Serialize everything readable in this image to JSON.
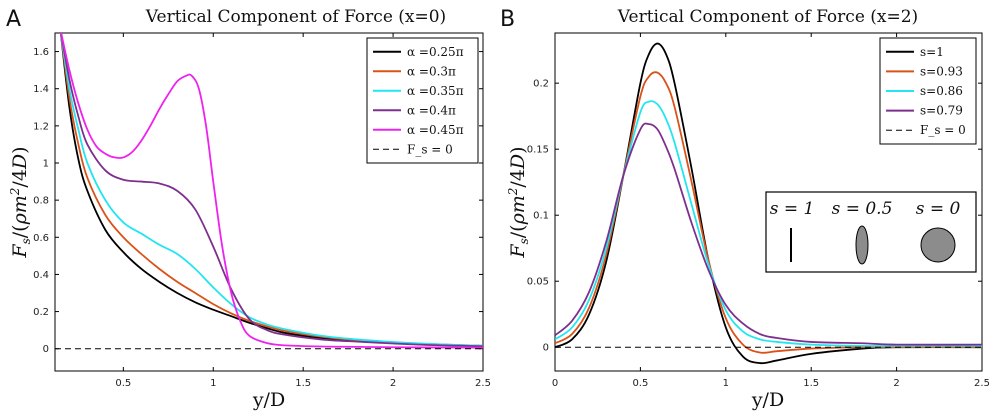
{
  "chart_data": [
    {
      "panel": "A",
      "type": "line",
      "title": "Vertical Component of Force (x=0)",
      "xlabel": "y/D",
      "ylabel": "F_s/(ρm²/4D)",
      "xlim": [
        0.12,
        2.5
      ],
      "ylim": [
        -0.12,
        1.7
      ],
      "xticks": [
        0.5,
        1,
        1.5,
        2,
        2.5
      ],
      "xtick_labels": [
        "0.5",
        "1",
        "1.5",
        "2",
        "2.5"
      ],
      "yticks": [
        0,
        0.2,
        0.4,
        0.6,
        0.8,
        1,
        1.2,
        1.4,
        1.6
      ],
      "ytick_labels": [
        "0",
        "0.2",
        "0.4",
        "0.6",
        "0.8",
        "1",
        "1.2",
        "1.4",
        "1.6"
      ],
      "legend_position": "top-right",
      "series": [
        {
          "name": "α =0.25π",
          "color": "#000000",
          "x": [
            0.15,
            0.2,
            0.25,
            0.3,
            0.4,
            0.5,
            0.6,
            0.7,
            0.8,
            0.9,
            1.0,
            1.1,
            1.2,
            1.3,
            1.4,
            1.6,
            1.8,
            2.0,
            2.2,
            2.5
          ],
          "y": [
            1.72,
            1.3,
            1.02,
            0.85,
            0.64,
            0.52,
            0.43,
            0.36,
            0.3,
            0.25,
            0.21,
            0.175,
            0.14,
            0.11,
            0.085,
            0.058,
            0.042,
            0.032,
            0.024,
            0.015
          ]
        },
        {
          "name": "α =0.3π",
          "color": "#d95319",
          "x": [
            0.15,
            0.2,
            0.25,
            0.3,
            0.4,
            0.5,
            0.6,
            0.7,
            0.8,
            0.9,
            1.0,
            1.1,
            1.2,
            1.3,
            1.4,
            1.6,
            1.8,
            2.0,
            2.2,
            2.5
          ],
          "y": [
            1.72,
            1.35,
            1.1,
            0.92,
            0.72,
            0.6,
            0.51,
            0.43,
            0.36,
            0.3,
            0.24,
            0.19,
            0.15,
            0.12,
            0.095,
            0.065,
            0.046,
            0.034,
            0.025,
            0.016
          ]
        },
        {
          "name": "α =0.35π",
          "color": "#22e5f0",
          "x": [
            0.15,
            0.2,
            0.25,
            0.3,
            0.4,
            0.5,
            0.6,
            0.7,
            0.8,
            0.9,
            1.0,
            1.1,
            1.2,
            1.3,
            1.4,
            1.6,
            1.8,
            2.0,
            2.2,
            2.5
          ],
          "y": [
            1.72,
            1.4,
            1.18,
            1.0,
            0.8,
            0.68,
            0.62,
            0.56,
            0.51,
            0.43,
            0.33,
            0.24,
            0.17,
            0.13,
            0.105,
            0.07,
            0.05,
            0.036,
            0.026,
            0.016
          ]
        },
        {
          "name": "α =0.4π",
          "color": "#7e2f8e",
          "x": [
            0.15,
            0.2,
            0.25,
            0.3,
            0.4,
            0.5,
            0.6,
            0.7,
            0.8,
            0.9,
            1.0,
            1.1,
            1.2,
            1.3,
            1.4,
            1.6,
            1.8,
            2.0,
            2.2,
            2.5
          ],
          "y": [
            1.72,
            1.45,
            1.25,
            1.1,
            0.96,
            0.91,
            0.9,
            0.89,
            0.85,
            0.75,
            0.55,
            0.32,
            0.16,
            0.1,
            0.075,
            0.05,
            0.038,
            0.028,
            0.02,
            0.013
          ]
        },
        {
          "name": "α =0.45π",
          "color": "#ee22ee",
          "x": [
            0.15,
            0.2,
            0.25,
            0.3,
            0.35,
            0.4,
            0.45,
            0.5,
            0.55,
            0.6,
            0.65,
            0.7,
            0.75,
            0.8,
            0.85,
            0.88,
            0.92,
            0.96,
            1.0,
            1.05,
            1.1,
            1.15,
            1.2,
            1.3,
            1.4,
            1.6,
            1.8,
            2.0,
            2.5
          ],
          "y": [
            1.72,
            1.5,
            1.32,
            1.18,
            1.09,
            1.05,
            1.03,
            1.03,
            1.06,
            1.12,
            1.2,
            1.29,
            1.37,
            1.44,
            1.47,
            1.47,
            1.4,
            1.2,
            0.9,
            0.55,
            0.3,
            0.15,
            0.07,
            0.03,
            0.018,
            0.012,
            0.01,
            0.008,
            0.006
          ]
        },
        {
          "name": "F_s = 0",
          "color": "#000000",
          "dashed": true,
          "x": [
            0.12,
            2.5
          ],
          "y": [
            0,
            0
          ]
        }
      ]
    },
    {
      "panel": "B",
      "type": "line",
      "title": "Vertical Component of Force (x=2)",
      "xlabel": "y/D",
      "ylabel": "F_s/(ρm²/4D)",
      "xlim": [
        0,
        2.5
      ],
      "ylim": [
        -0.018,
        0.238
      ],
      "xticks": [
        0,
        0.5,
        1,
        1.5,
        2,
        2.5
      ],
      "xtick_labels": [
        "0",
        "0.5",
        "1",
        "1.5",
        "2",
        "2.5"
      ],
      "yticks": [
        0,
        0.05,
        0.1,
        0.15,
        0.2
      ],
      "ytick_labels": [
        "0",
        "0.05",
        "0.1",
        "0.15",
        "0.2"
      ],
      "legend_position": "top-right",
      "series": [
        {
          "name": "s=1",
          "color": "#000000",
          "x": [
            0,
            0.1,
            0.2,
            0.3,
            0.4,
            0.5,
            0.55,
            0.6,
            0.65,
            0.7,
            0.8,
            0.9,
            1.0,
            1.1,
            1.2,
            1.3,
            1.5,
            1.8,
            2.0,
            2.5
          ],
          "y": [
            0,
            0.006,
            0.025,
            0.065,
            0.13,
            0.2,
            0.222,
            0.23,
            0.222,
            0.2,
            0.135,
            0.065,
            0.015,
            -0.007,
            -0.012,
            -0.01,
            -0.005,
            -0.001,
            0.0,
            0.0
          ]
        },
        {
          "name": "s=0.93",
          "color": "#d95319",
          "x": [
            0,
            0.1,
            0.2,
            0.3,
            0.4,
            0.5,
            0.55,
            0.6,
            0.65,
            0.7,
            0.8,
            0.9,
            1.0,
            1.1,
            1.2,
            1.3,
            1.5,
            1.8,
            2.0,
            2.5
          ],
          "y": [
            0.003,
            0.01,
            0.03,
            0.07,
            0.13,
            0.19,
            0.205,
            0.208,
            0.2,
            0.182,
            0.125,
            0.065,
            0.022,
            0.002,
            -0.004,
            -0.003,
            -0.001,
            0.0,
            0.0,
            0.0
          ]
        },
        {
          "name": "s=0.86",
          "color": "#22e5f0",
          "x": [
            0,
            0.1,
            0.2,
            0.3,
            0.4,
            0.5,
            0.55,
            0.6,
            0.65,
            0.7,
            0.8,
            0.9,
            1.0,
            1.1,
            1.2,
            1.3,
            1.5,
            1.8,
            2.0,
            2.5
          ],
          "y": [
            0.006,
            0.015,
            0.036,
            0.075,
            0.13,
            0.178,
            0.186,
            0.184,
            0.173,
            0.155,
            0.108,
            0.062,
            0.028,
            0.012,
            0.006,
            0.004,
            0.002,
            0.001,
            0.001,
            0.001
          ]
        },
        {
          "name": "s=0.79",
          "color": "#7e2f8e",
          "x": [
            0,
            0.1,
            0.2,
            0.3,
            0.4,
            0.5,
            0.55,
            0.6,
            0.65,
            0.7,
            0.8,
            0.9,
            1.0,
            1.1,
            1.2,
            1.3,
            1.5,
            1.8,
            2.0,
            2.5
          ],
          "y": [
            0.009,
            0.02,
            0.042,
            0.08,
            0.13,
            0.165,
            0.169,
            0.165,
            0.152,
            0.135,
            0.094,
            0.058,
            0.032,
            0.018,
            0.01,
            0.007,
            0.004,
            0.003,
            0.002,
            0.002
          ]
        },
        {
          "name": "F_s = 0",
          "color": "#000000",
          "dashed": true,
          "x": [
            0,
            2.5
          ],
          "y": [
            0,
            0
          ]
        }
      ],
      "inset_labels": [
        "s = 1",
        "s = 0.5",
        "s = 0"
      ]
    }
  ]
}
